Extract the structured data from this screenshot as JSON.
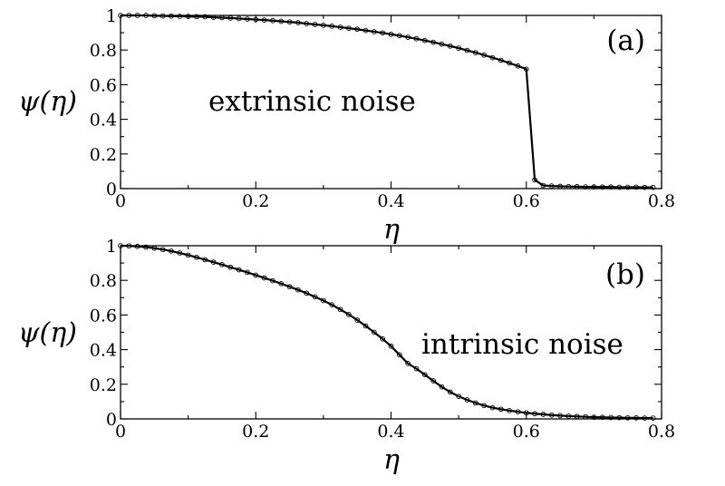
{
  "chart_data": [
    {
      "type": "line",
      "panel_label": "(a)",
      "annotation": "extrinsic noise",
      "xlabel": "η",
      "ylabel": "ψ(η)",
      "xlim": [
        0,
        0.8
      ],
      "ylim": [
        0,
        1
      ],
      "xticks": [
        "0",
        "0.2",
        "0.4",
        "0.6",
        "0.8"
      ],
      "yticks": [
        "0",
        "0.2",
        "0.4",
        "0.6",
        "0.8",
        "1"
      ],
      "grid": false,
      "series": [
        {
          "x": [
            0,
            0.0125,
            0.025,
            0.0375,
            0.05,
            0.0625,
            0.075,
            0.0875,
            0.1,
            0.1125,
            0.125,
            0.1375,
            0.15,
            0.1625,
            0.175,
            0.1875,
            0.2,
            0.2125,
            0.225,
            0.2375,
            0.25,
            0.2625,
            0.275,
            0.2875,
            0.3,
            0.3125,
            0.325,
            0.3375,
            0.35,
            0.3625,
            0.375,
            0.3875,
            0.4,
            0.4125,
            0.425,
            0.4375,
            0.45,
            0.4625,
            0.475,
            0.4875,
            0.5,
            0.5125,
            0.525,
            0.5375,
            0.55,
            0.5625,
            0.575,
            0.5875,
            0.6,
            0.6125,
            0.625,
            0.6375,
            0.65,
            0.6625,
            0.675,
            0.6875,
            0.7,
            0.7125,
            0.725,
            0.7375,
            0.75,
            0.7625,
            0.775,
            0.7875
          ],
          "y": [
            1.0,
            1.0,
            1.0,
            1.0,
            0.998,
            0.997,
            0.996,
            0.995,
            0.994,
            0.993,
            0.992,
            0.989,
            0.987,
            0.985,
            0.982,
            0.979,
            0.976,
            0.973,
            0.97,
            0.966,
            0.962,
            0.958,
            0.953,
            0.948,
            0.943,
            0.938,
            0.932,
            0.926,
            0.92,
            0.913,
            0.906,
            0.899,
            0.891,
            0.883,
            0.874,
            0.865,
            0.855,
            0.845,
            0.834,
            0.823,
            0.811,
            0.798,
            0.785,
            0.771,
            0.756,
            0.741,
            0.725,
            0.708,
            0.69,
            0.05,
            0.018,
            0.015,
            0.013,
            0.012,
            0.011,
            0.01,
            0.01,
            0.009,
            0.009,
            0.008,
            0.008,
            0.008,
            0.007,
            0.007
          ]
        }
      ]
    },
    {
      "type": "line",
      "panel_label": "(b)",
      "annotation": "intrinsic noise",
      "xlabel": "η",
      "ylabel": "ψ(η)",
      "xlim": [
        0,
        0.8
      ],
      "ylim": [
        0,
        1
      ],
      "xticks": [
        "0",
        "0.2",
        "0.4",
        "0.6",
        "0.8"
      ],
      "yticks": [
        "0",
        "0.2",
        "0.4",
        "0.6",
        "0.8",
        "1"
      ],
      "grid": false,
      "series": [
        {
          "x": [
            0,
            0.0125,
            0.025,
            0.0375,
            0.05,
            0.0625,
            0.075,
            0.0875,
            0.1,
            0.1125,
            0.125,
            0.1375,
            0.15,
            0.1625,
            0.175,
            0.1875,
            0.2,
            0.2125,
            0.225,
            0.2375,
            0.25,
            0.2625,
            0.275,
            0.2875,
            0.3,
            0.3125,
            0.325,
            0.3375,
            0.35,
            0.3625,
            0.375,
            0.3875,
            0.4,
            0.4125,
            0.425,
            0.4375,
            0.45,
            0.4625,
            0.475,
            0.4875,
            0.5,
            0.5125,
            0.525,
            0.5375,
            0.55,
            0.5625,
            0.575,
            0.5875,
            0.6,
            0.6125,
            0.625,
            0.6375,
            0.65,
            0.6625,
            0.675,
            0.6875,
            0.7,
            0.7125,
            0.725,
            0.7375,
            0.75,
            0.7625,
            0.775,
            0.7875
          ],
          "y": [
            1.0,
            0.999,
            0.996,
            0.992,
            0.986,
            0.978,
            0.969,
            0.958,
            0.946,
            0.933,
            0.919,
            0.905,
            0.891,
            0.876,
            0.861,
            0.846,
            0.83,
            0.814,
            0.798,
            0.781,
            0.763,
            0.745,
            0.726,
            0.705,
            0.683,
            0.659,
            0.632,
            0.603,
            0.571,
            0.537,
            0.5,
            0.462,
            0.42,
            0.37,
            0.32,
            0.29,
            0.255,
            0.22,
            0.185,
            0.155,
            0.13,
            0.11,
            0.092,
            0.077,
            0.065,
            0.056,
            0.048,
            0.041,
            0.035,
            0.03,
            0.026,
            0.022,
            0.019,
            0.016,
            0.014,
            0.012,
            0.01,
            0.009,
            0.008,
            0.007,
            0.006,
            0.006,
            0.005,
            0.005
          ]
        }
      ]
    }
  ]
}
